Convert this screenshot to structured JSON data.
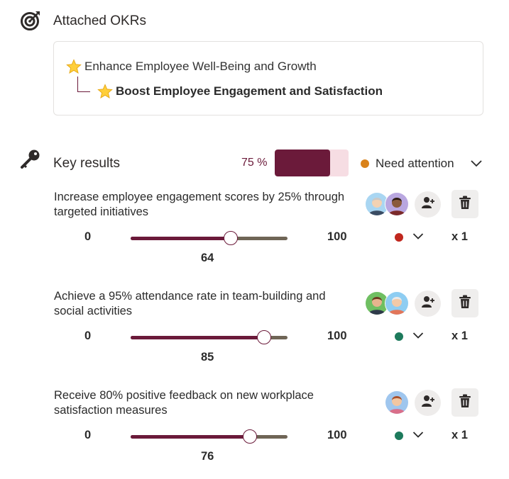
{
  "attached_okrs": {
    "title": "Attached OKRs",
    "parent": "Enhance Employee Well-Being and Growth",
    "child": "Boost Employee Engagement and Satisfaction"
  },
  "key_results_header": {
    "title": "Key results",
    "percent_text": "75 %",
    "progress": 0.75,
    "status": "Need attention",
    "status_color": "#d9821a"
  },
  "key_results": [
    {
      "title": "Increase employee engagement scores by 25% through targeted initiatives",
      "min": "0",
      "max": "100",
      "value": "64",
      "value_num": 64,
      "dot_color": "#c0271e",
      "multiplier": "x 1"
    },
    {
      "title": "Achieve a 95% attendance rate in team-building and social activities",
      "min": "0",
      "max": "100",
      "value": "85",
      "value_num": 85,
      "dot_color": "#1d7a5c",
      "multiplier": "x 1"
    },
    {
      "title": "Receive 80% positive feedback on new workplace satisfaction measures",
      "min": "0",
      "max": "100",
      "value": "76",
      "value_num": 76,
      "dot_color": "#1d7a5c",
      "multiplier": "x 1"
    }
  ],
  "colors": {
    "accent": "#6b1a3a",
    "track": "#6f6556",
    "light_accent": "#f6dde3"
  },
  "icons": [
    "target-icon",
    "key-icon",
    "star-icon",
    "chevron-down-icon",
    "add-user-icon",
    "trash-icon"
  ]
}
